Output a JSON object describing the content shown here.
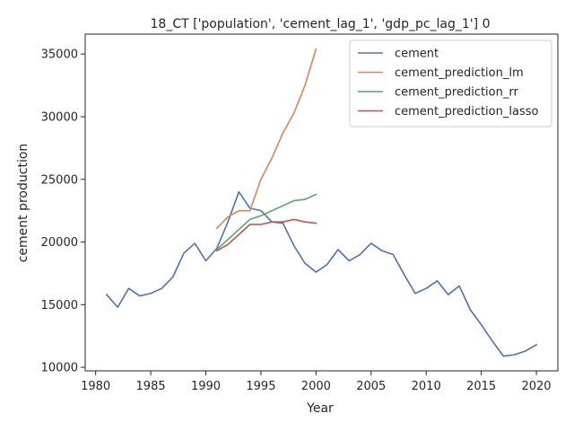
{
  "chart_data": {
    "type": "line",
    "title": "18_CT ['population', 'cement_lag_1', 'gdp_pc_lag_1'] 0",
    "xlabel": "Year",
    "ylabel": "cement production",
    "xlim": [
      1979.05,
      2021.95
    ],
    "ylim": [
      9720,
      36590
    ],
    "xticks": [
      1980,
      1985,
      1990,
      1995,
      2000,
      2005,
      2010,
      2015,
      2020
    ],
    "yticks": [
      10000,
      15000,
      20000,
      25000,
      30000,
      35000
    ],
    "grid": false,
    "legend_position": "top-right",
    "series": [
      {
        "name": "cement",
        "color": "#4c72b0",
        "x": [
          1981,
          1982,
          1983,
          1984,
          1985,
          1986,
          1987,
          1988,
          1989,
          1990,
          1991,
          1992,
          1993,
          1994,
          1995,
          1996,
          1997,
          1998,
          1999,
          2000,
          2001,
          2002,
          2003,
          2004,
          2005,
          2006,
          2007,
          2008,
          2009,
          2010,
          2011,
          2012,
          2013,
          2014,
          2015,
          2016,
          2017,
          2018,
          2019,
          2020
        ],
        "y": [
          15800,
          14800,
          16300,
          15700,
          15900,
          16300,
          17200,
          19100,
          19900,
          18500,
          19500,
          21600,
          24000,
          22700,
          22500,
          21600,
          21500,
          19700,
          18300,
          17600,
          18200,
          19400,
          18500,
          19000,
          19900,
          19300,
          19000,
          17400,
          15900,
          16300,
          16900,
          15800,
          16500,
          14600,
          13400,
          12100,
          10900,
          11000,
          11300,
          11800
        ]
      },
      {
        "name": "cement_prediction_lm",
        "color": "#dd8452",
        "x": [
          1991,
          1992,
          1993,
          1994,
          1995,
          1996,
          1997,
          1998,
          1999,
          2000
        ],
        "y": [
          21100,
          22000,
          22500,
          22500,
          25000,
          26700,
          28700,
          30300,
          32500,
          35400
        ]
      },
      {
        "name": "cement_prediction_rr",
        "color": "#55a868",
        "x": [
          1991,
          1992,
          1993,
          1994,
          1995,
          1996,
          1997,
          1998,
          1999,
          2000
        ],
        "y": [
          19400,
          20200,
          21000,
          21800,
          22100,
          22500,
          22900,
          23300,
          23400,
          23800
        ]
      },
      {
        "name": "cement_prediction_lasso",
        "color": "#c44e52",
        "x": [
          1991,
          1992,
          1993,
          1994,
          1995,
          1996,
          1997,
          1998,
          1999,
          2000
        ],
        "y": [
          19300,
          19800,
          20600,
          21400,
          21400,
          21600,
          21600,
          21800,
          21600,
          21500
        ]
      }
    ]
  }
}
